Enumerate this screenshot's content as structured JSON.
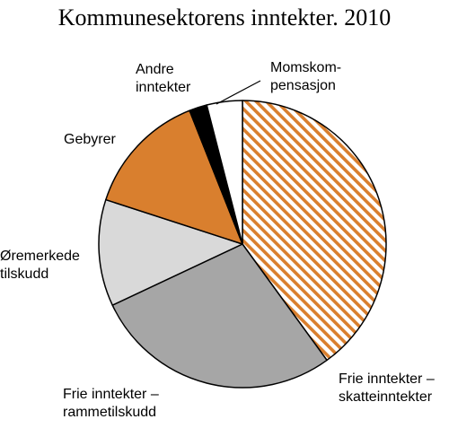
{
  "chart_data": {
    "type": "pie",
    "title": "Kommunesektorens inntekter. 2010",
    "start_angle_deg": 0,
    "direction": "clockwise",
    "slices": [
      {
        "label": [
          "Frie inntekter –",
          "skatteinntekter"
        ],
        "value": 40,
        "fill": "hatch-orange"
      },
      {
        "label": [
          "Frie inntekter –",
          "rammetilskudd"
        ],
        "value": 28,
        "fill": "#a6a6a6"
      },
      {
        "label": [
          "Øremerkede",
          "tilskudd"
        ],
        "value": 12,
        "fill": "#d9d9d9"
      },
      {
        "label": [
          "Gebyrer"
        ],
        "value": 14,
        "fill": "#d97f2e"
      },
      {
        "label": [
          "Andre",
          "inntekter"
        ],
        "value": 2,
        "fill": "#000000"
      },
      {
        "label": [
          "Momskom-",
          "pensasjon"
        ],
        "value": 4,
        "fill": "#ffffff"
      }
    ]
  }
}
